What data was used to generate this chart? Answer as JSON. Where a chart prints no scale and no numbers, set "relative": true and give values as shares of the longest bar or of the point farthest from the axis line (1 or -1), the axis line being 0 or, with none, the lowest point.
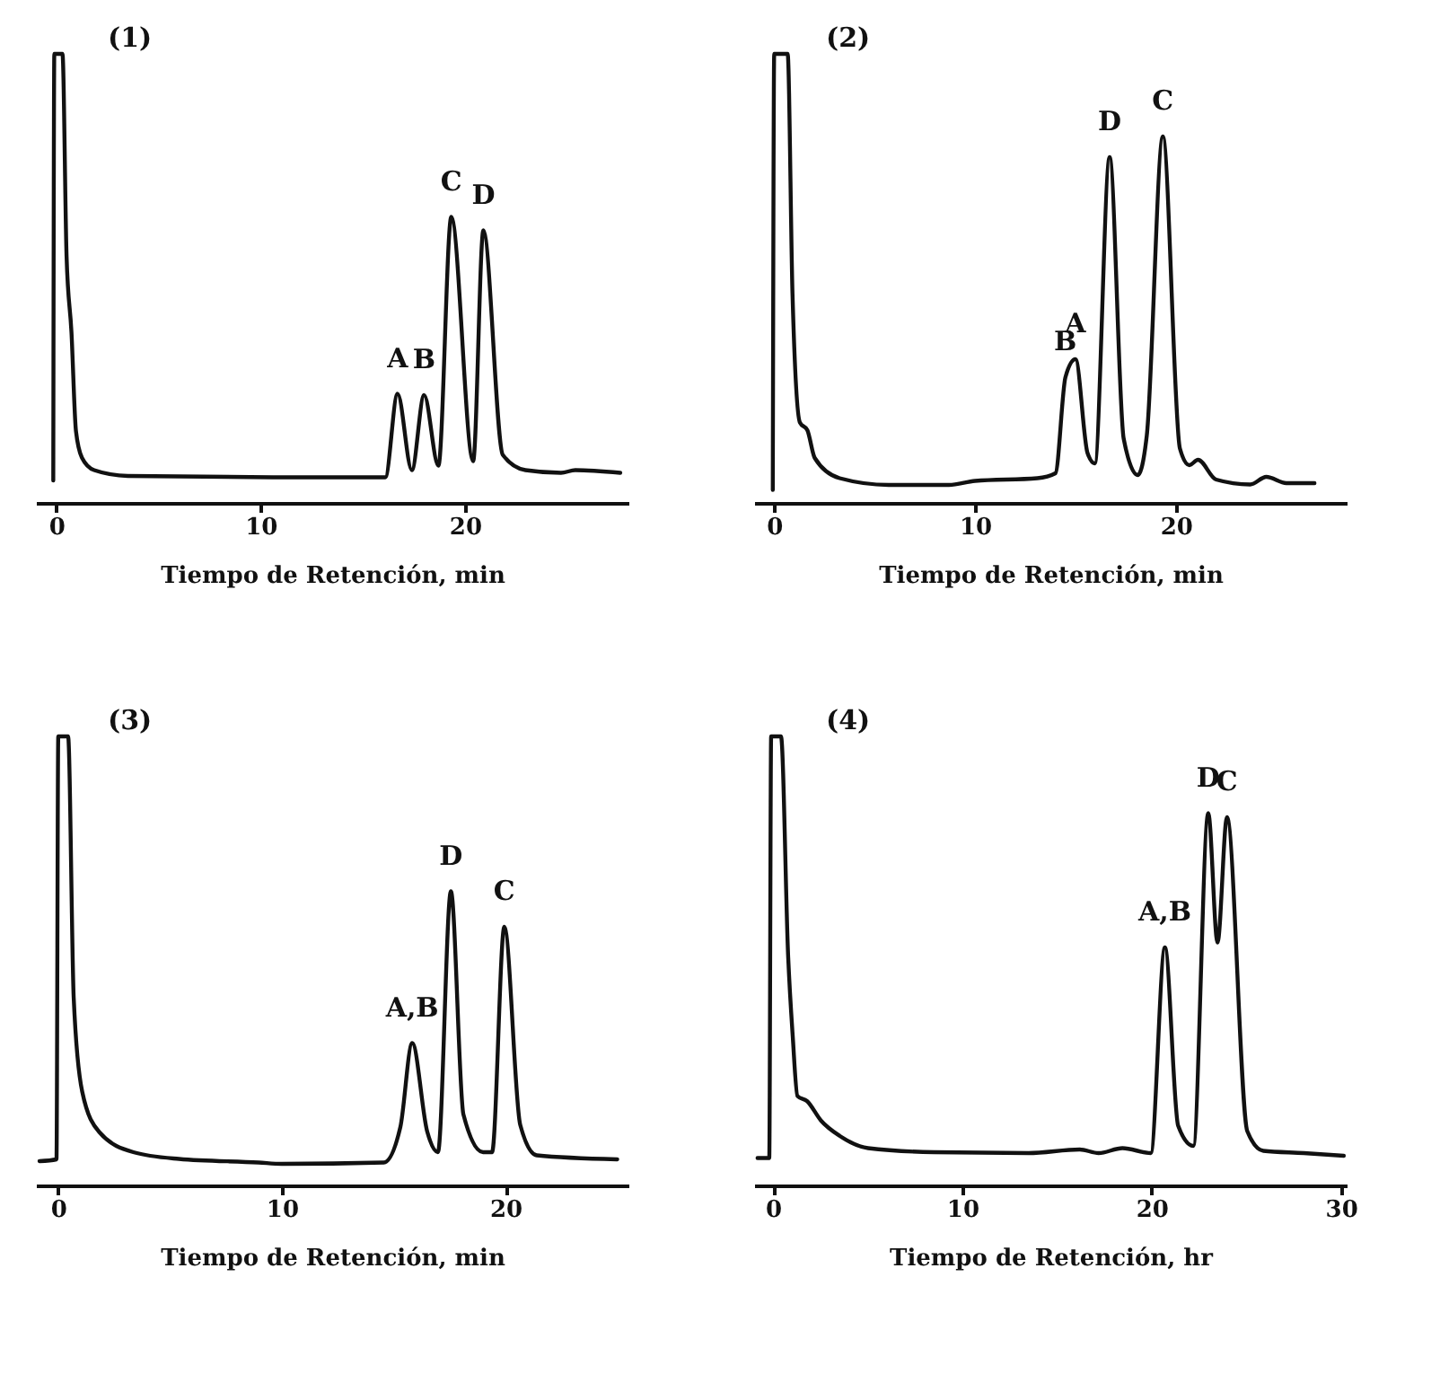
{
  "chart_data": [
    {
      "type": "line",
      "relative": true,
      "xlabel": "Tiempo de Retención, min",
      "xlim": [
        -1,
        28
      ],
      "xticks": [
        0,
        10,
        20
      ],
      "grid": false,
      "tick_labels": "x",
      "line_style": "solid",
      "marker": "none",
      "x": [
        -0.15,
        -0.1,
        0.3,
        0.5,
        0.74,
        0.96,
        1.26,
        1.85,
        3.5,
        10.6,
        16.1,
        16.7,
        17.4,
        18.0,
        18.7,
        19.33,
        20.4,
        20.9,
        21.85,
        22.96,
        24.7,
        25.4,
        27.6
      ],
      "series": [
        {
          "color": "#111111",
          "values": [
            0.05,
            1.0,
            1.0,
            0.55,
            0.38,
            0.16,
            0.1,
            0.073,
            0.06,
            0.057,
            0.057,
            0.243,
            0.073,
            0.24,
            0.083,
            0.637,
            0.093,
            0.607,
            0.107,
            0.073,
            0.067,
            0.073,
            0.067
          ]
        }
      ],
      "annotations": [
        "(1)",
        {
          "text": "A",
          "x": 16.7,
          "y": 0.243
        },
        {
          "text": "B",
          "x": 18.0,
          "y": 0.24
        },
        {
          "text": "C",
          "x": 19.33,
          "y": 0.637
        },
        {
          "text": "D",
          "x": 20.9,
          "y": 0.607
        }
      ]
    },
    {
      "type": "line",
      "relative": true,
      "xlabel": "Tiempo de Retención, min",
      "xlim": [
        -1,
        28.5
      ],
      "xticks": [
        0,
        10,
        20
      ],
      "grid": false,
      "tick_labels": "x",
      "line_style": "solid",
      "marker": "none",
      "x": [
        -0.07,
        0,
        0.67,
        0.91,
        1.28,
        1.65,
        2.02,
        3.26,
        5.7,
        8.7,
        10.0,
        13.1,
        14.0,
        14.5,
        15.0,
        15.6,
        15.96,
        16.7,
        17.4,
        18.1,
        18.55,
        19.35,
        20.2,
        20.67,
        21.1,
        22.0,
        23.7,
        24.5,
        25.5,
        26.9
      ],
      "series": [
        {
          "color": "#111111",
          "values": [
            0.029,
            1.0,
            1.0,
            0.467,
            0.179,
            0.162,
            0.1,
            0.055,
            0.04,
            0.04,
            0.049,
            0.055,
            0.066,
            0.28,
            0.32,
            0.111,
            0.088,
            0.77,
            0.143,
            0.062,
            0.15,
            0.816,
            0.121,
            0.084,
            0.096,
            0.052,
            0.041,
            0.058,
            0.044,
            0.044
          ]
        }
      ],
      "annotations": [
        "(2)",
        {
          "text": "B",
          "x": 14.5,
          "y": 0.28
        },
        {
          "text": "A",
          "x": 15.0,
          "y": 0.32
        },
        {
          "text": "D",
          "x": 16.7,
          "y": 0.77
        },
        {
          "text": "C",
          "x": 19.35,
          "y": 0.816
        }
      ]
    },
    {
      "type": "line",
      "relative": true,
      "xlabel": "Tiempo de Retención, min",
      "xlim": [
        -1,
        25.5
      ],
      "xticks": [
        0,
        10,
        20
      ],
      "grid": false,
      "tick_labels": "x",
      "line_style": "solid",
      "marker": "none",
      "x": [
        -0.84,
        -0.08,
        0,
        0.44,
        0.69,
        1.07,
        1.83,
        3.36,
        5.4,
        8.96,
        10.0,
        14.56,
        15.3,
        15.83,
        16.5,
        16.98,
        17.56,
        18.12,
        19.0,
        19.4,
        19.95,
        20.66,
        21.4,
        25.0
      ],
      "series": [
        {
          "color": "#111111",
          "values": [
            0.054,
            0.058,
            1.0,
            1.0,
            0.418,
            0.209,
            0.119,
            0.074,
            0.059,
            0.051,
            0.048,
            0.051,
            0.13,
            0.317,
            0.12,
            0.074,
            0.655,
            0.158,
            0.074,
            0.074,
            0.576,
            0.135,
            0.067,
            0.058
          ]
        }
      ],
      "annotations": [
        "(3)",
        {
          "text": "A,B",
          "x": 15.83,
          "y": 0.317
        },
        {
          "text": "D",
          "x": 17.56,
          "y": 0.655
        },
        {
          "text": "C",
          "x": 19.95,
          "y": 0.576
        }
      ]
    },
    {
      "type": "line",
      "relative": true,
      "xlabel": "Tiempo de Retención, hr",
      "xlim": [
        -1,
        30.3
      ],
      "xticks": [
        0,
        10,
        20,
        30
      ],
      "grid": false,
      "tick_labels": "x",
      "line_style": "solid",
      "marker": "none",
      "x": [
        -0.82,
        -0.2,
        -0.1,
        0.42,
        0.8,
        1.04,
        1.29,
        1.79,
        2.54,
        3.53,
        5.02,
        8.5,
        13.5,
        16.2,
        17.2,
        18.46,
        19.95,
        20.7,
        21.4,
        22.2,
        22.99,
        23.48,
        23.98,
        25.05,
        25.9,
        28.04,
        30.15
      ],
      "series": [
        {
          "color": "#111111",
          "values": [
            0.061,
            0.061,
            1.0,
            1.0,
            0.508,
            0.332,
            0.199,
            0.188,
            0.144,
            0.11,
            0.083,
            0.074,
            0.072,
            0.08,
            0.072,
            0.083,
            0.072,
            0.53,
            0.133,
            0.088,
            0.829,
            0.541,
            0.82,
            0.121,
            0.077,
            0.072,
            0.066
          ]
        }
      ],
      "annotations": [
        "(4)",
        {
          "text": "A,B",
          "x": 20.7,
          "y": 0.53
        },
        {
          "text": "D",
          "x": 22.99,
          "y": 0.829
        },
        {
          "text": "C",
          "x": 23.98,
          "y": 0.82
        }
      ]
    }
  ]
}
